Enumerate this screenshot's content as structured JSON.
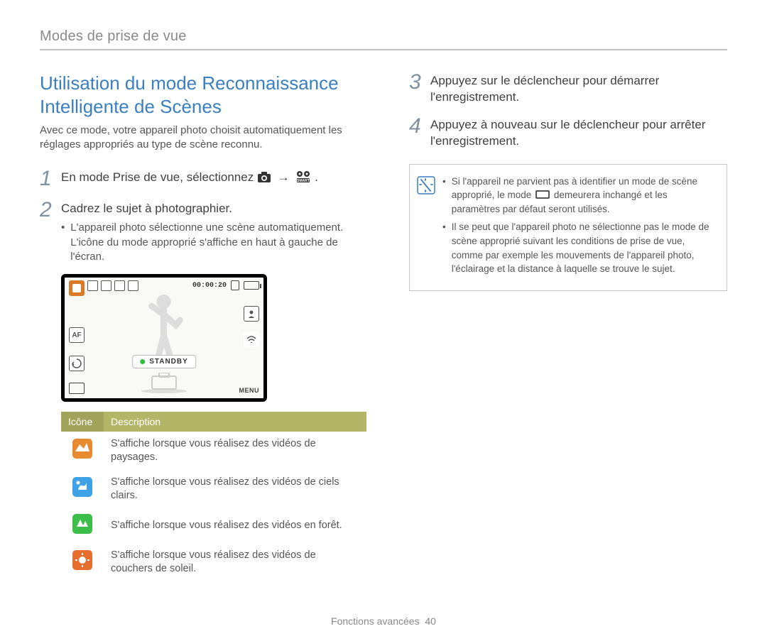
{
  "breadcrumb": "Modes de prise de vue",
  "title": "Utilisation du mode Reconnaissance Intelligente de Scènes",
  "intro": "Avec ce mode, votre appareil photo choisit automatiquement les réglages appropriés au type de scène reconnu.",
  "steps_left": {
    "1": {
      "main_pre": "En mode Prise de vue, sélectionnez ",
      "main_post": "."
    },
    "2": {
      "main": "Cadrez le sujet à photographier.",
      "bullet": "L'appareil photo sélectionne une scène automatiquement. L'icône du mode approprié s'affiche en haut à gauche de l'écran."
    }
  },
  "steps_right": {
    "3": {
      "main": "Appuyez sur le déclencheur pour démarrer l'enregistrement."
    },
    "4": {
      "main": "Appuyez à nouveau sur le déclencheur pour arrêter l'enregistrement."
    }
  },
  "lcd": {
    "timer": "00:00:20",
    "standby": "STANDBY",
    "menu": "MENU",
    "af_label": "AF"
  },
  "table": {
    "header_icon": "Icône",
    "header_desc": "Description",
    "rows": [
      {
        "color": "#e88a2f",
        "desc": "S'affiche lorsque vous réalisez des vidéos de paysages."
      },
      {
        "color": "#3fa2e6",
        "desc": "S'affiche lorsque vous réalisez des vidéos de ciels clairs."
      },
      {
        "color": "#3dbd4a",
        "desc": "S'affiche lorsque vous réalisez des vidéos en forêt."
      },
      {
        "color": "#e86e2f",
        "desc": "S'affiche lorsque vous réalisez des vidéos de couchers de soleil."
      }
    ]
  },
  "note": {
    "item1_pre": "Si l'appareil ne parvient pas à identifier un mode de scène approprié, le mode ",
    "item1_post": " demeurera inchangé et les paramètres par défaut seront utilisés.",
    "item2": "Il se peut que l'appareil photo ne sélectionne pas le mode de scène approprié suivant les conditions de prise de vue, comme par exemple les mouvements de l'appareil photo, l'éclairage et la distance à laquelle se trouve le sujet."
  },
  "footer": {
    "section": "Fonctions avancées",
    "page": "40"
  },
  "colors": {
    "title": "#3a7fbf",
    "stepnum": "#7e92a2",
    "table_header_bg": "#b3b667",
    "table_header_bg_first": "#a1a45a"
  }
}
